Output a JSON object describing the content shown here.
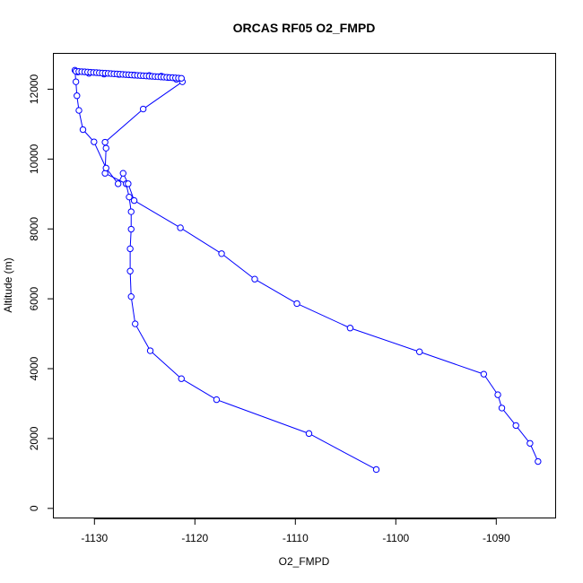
{
  "chart_data": {
    "type": "line",
    "title": "ORCAS RF05 O2_FMPD",
    "xlabel": "O2_FMPD",
    "ylabel": "Altitude (m)",
    "xlim": [
      -1134,
      -1084
    ],
    "ylim": [
      -300,
      13000
    ],
    "xticks": [
      -1130,
      -1120,
      -1110,
      -1100,
      -1090
    ],
    "yticks": [
      0,
      2000,
      4000,
      6000,
      8000,
      10000,
      12000
    ],
    "grid": false,
    "legend": "none",
    "colors": {
      "series": "#0000ff",
      "axis": "#000000"
    },
    "series": [
      {
        "x": [
          -1101.9,
          -1108.6,
          -1117.8,
          -1121.3,
          -1124.4,
          -1125.9,
          -1126.3,
          -1126.4,
          -1126.4,
          -1126.3,
          -1126.3,
          -1126.5,
          -1126.8,
          -1128.9,
          -1128.8,
          -1128.9,
          -1125.1,
          -1121.2,
          -1121.8,
          -1122.6,
          -1123.3,
          -1124.5,
          -1126.0,
          -1127.5,
          -1129.0,
          -1130.5,
          -1131.6,
          -1131.9,
          -1131.8,
          -1131.7,
          -1131.5,
          -1131.1,
          -1130.0,
          -1128.8,
          -1127.6,
          -1127.1,
          -1126.6,
          -1126.0,
          -1121.4,
          -1117.3,
          -1114.0,
          -1109.8,
          -1104.5,
          -1097.6,
          -1091.2,
          -1089.8,
          -1089.4,
          -1088.0,
          -1086.6,
          -1085.8
        ],
        "y": [
          1100,
          2130,
          3100,
          3700,
          4500,
          5270,
          6050,
          6780,
          7420,
          7980,
          8480,
          8900,
          9280,
          9580,
          10300,
          10470,
          11420,
          12200,
          12270,
          12320,
          12360,
          12380,
          12390,
          12410,
          12420,
          12440,
          12480,
          12530,
          12200,
          11800,
          11380,
          10830,
          10480,
          9730,
          9280,
          9580,
          9280,
          8800,
          8020,
          7280,
          6550,
          5850,
          5150,
          4470,
          3830,
          3240,
          2860,
          2360,
          1850,
          1330
        ]
      }
    ]
  }
}
